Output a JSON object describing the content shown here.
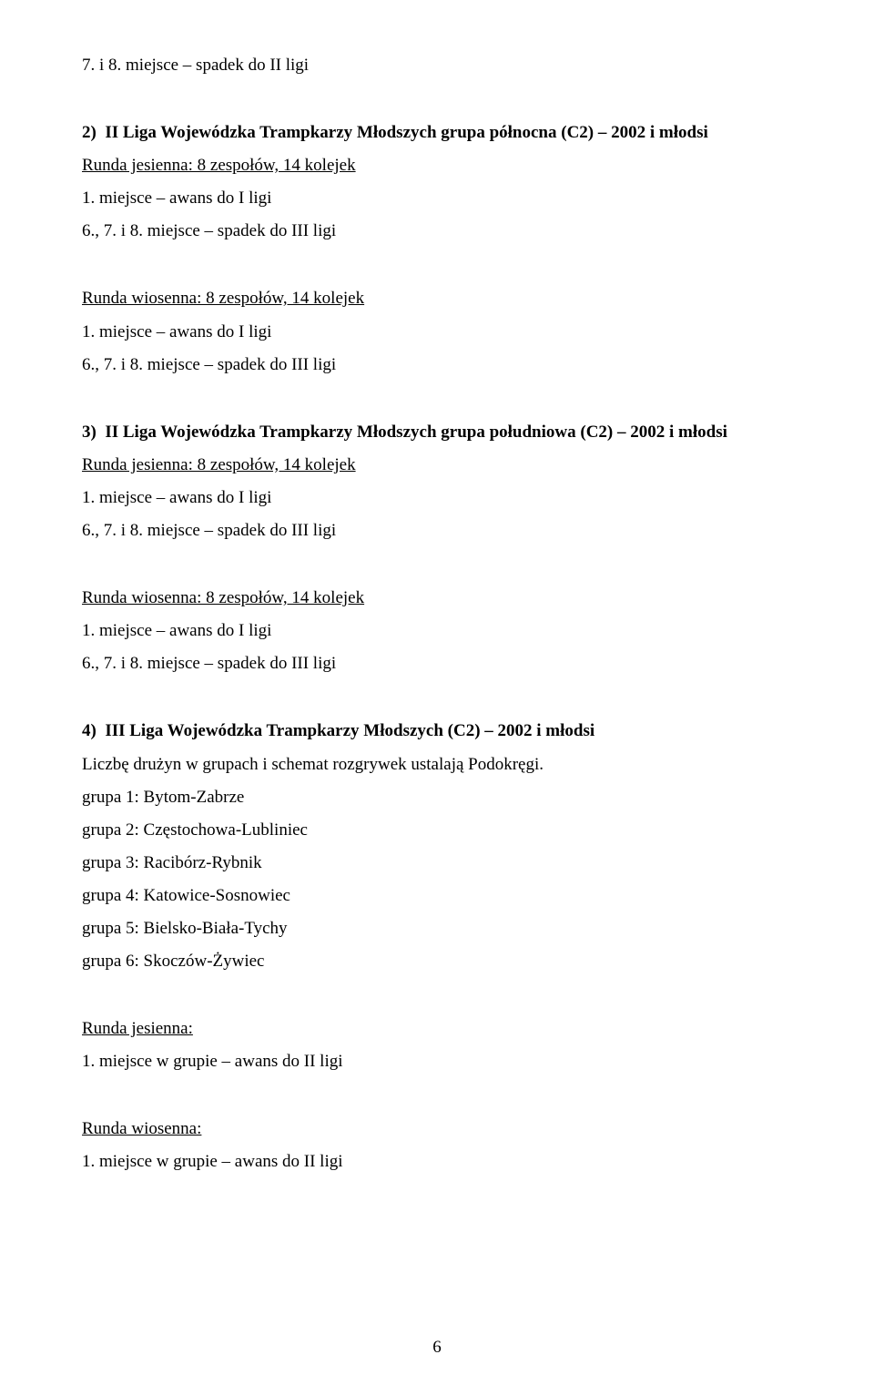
{
  "top": {
    "line1": "7. i 8. miejsce – spadek do II ligi"
  },
  "sec2": {
    "heading": "2)  II Liga Wojewódzka Trampkarzy Młodszych grupa północna (C2) – 2002 i młodsi",
    "jesienna_label": "Runda jesienna: 8 zespołów, 14 kolejek",
    "l1": "1. miejsce – awans do I ligi",
    "l2": "6., 7. i 8. miejsce – spadek do III ligi",
    "wiosenna_label": "Runda wiosenna: 8 zespołów, 14 kolejek",
    "l3": "1. miejsce – awans do I ligi",
    "l4": "6., 7. i 8. miejsce – spadek do III ligi"
  },
  "sec3": {
    "heading": "3)  II Liga Wojewódzka Trampkarzy Młodszych grupa południowa (C2) – 2002 i młodsi",
    "jesienna_label": "Runda jesienna: 8 zespołów, 14 kolejek",
    "l1": "1. miejsce – awans do I ligi",
    "l2": "6., 7. i 8. miejsce – spadek do III ligi",
    "wiosenna_label": "Runda wiosenna: 8 zespołów, 14 kolejek",
    "l3": "1. miejsce – awans do I ligi",
    "l4": "6., 7. i 8. miejsce – spadek do III ligi"
  },
  "sec4": {
    "heading": "4)  III Liga Wojewódzka Trampkarzy Młodszych (C2) – 2002 i młodsi",
    "intro": "Liczbę drużyn w grupach i schemat rozgrywek ustalają Podokręgi.",
    "g1": "grupa 1: Bytom-Zabrze",
    "g2": "grupa 2: Częstochowa-Lubliniec",
    "g3": "grupa 3: Racibórz-Rybnik",
    "g4": "grupa 4: Katowice-Sosnowiec",
    "g5": "grupa 5: Bielsko-Biała-Tychy",
    "g6": "grupa 6: Skoczów-Żywiec",
    "jesienna_label": "Runda jesienna:",
    "j1": "1. miejsce w grupie – awans do II ligi",
    "wiosenna_label": "Runda wiosenna:",
    "w1": "1. miejsce w grupie – awans do II ligi"
  },
  "page_number": "6"
}
